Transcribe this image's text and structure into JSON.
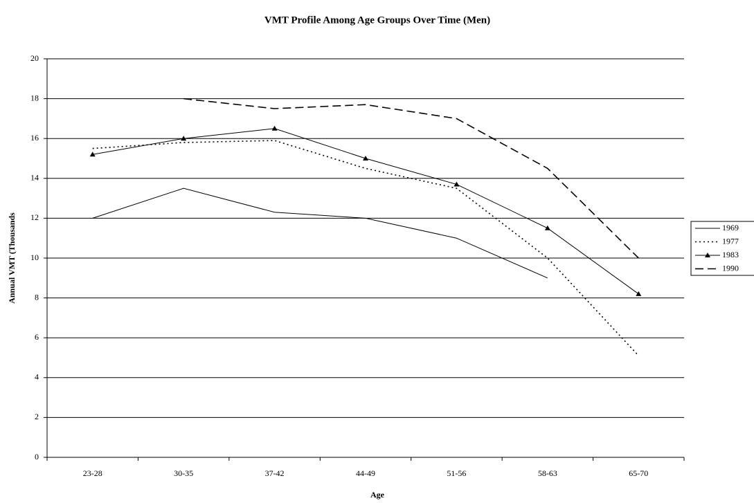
{
  "chart_data": {
    "type": "line",
    "title": "VMT Profile Among Age Groups Over Time (Men)",
    "x_label": "Age",
    "y_label": "Annual VMT (Thousands",
    "categories": [
      "23-28",
      "30-35",
      "37-42",
      "44-49",
      "51-56",
      "58-63",
      "65-70"
    ],
    "series": [
      {
        "name": "1969",
        "color": "#000000",
        "line_style": "solid",
        "values": [
          12,
          13.5,
          12.3,
          12,
          11,
          9,
          null
        ]
      },
      {
        "name": "1977",
        "color": "#000000",
        "line_style": "dotted",
        "values": [
          15.5,
          15.8,
          15.9,
          14.5,
          13.5,
          10,
          5.1
        ]
      },
      {
        "name": "1983",
        "color": "#000000",
        "line_style": "solid",
        "marker": "triangle",
        "values": [
          15.2,
          16,
          16.5,
          15,
          13.7,
          11.5,
          8.2
        ]
      },
      {
        "name": "1990",
        "color": "#000000",
        "line_style": "dashed",
        "values": [
          null,
          18,
          17.5,
          17.7,
          17,
          14.5,
          10
        ]
      }
    ],
    "ylim": [
      0,
      20
    ],
    "yticks": [
      0,
      2,
      4,
      6,
      8,
      10,
      12,
      14,
      16,
      18,
      20
    ],
    "grid": true,
    "legend": "right"
  }
}
